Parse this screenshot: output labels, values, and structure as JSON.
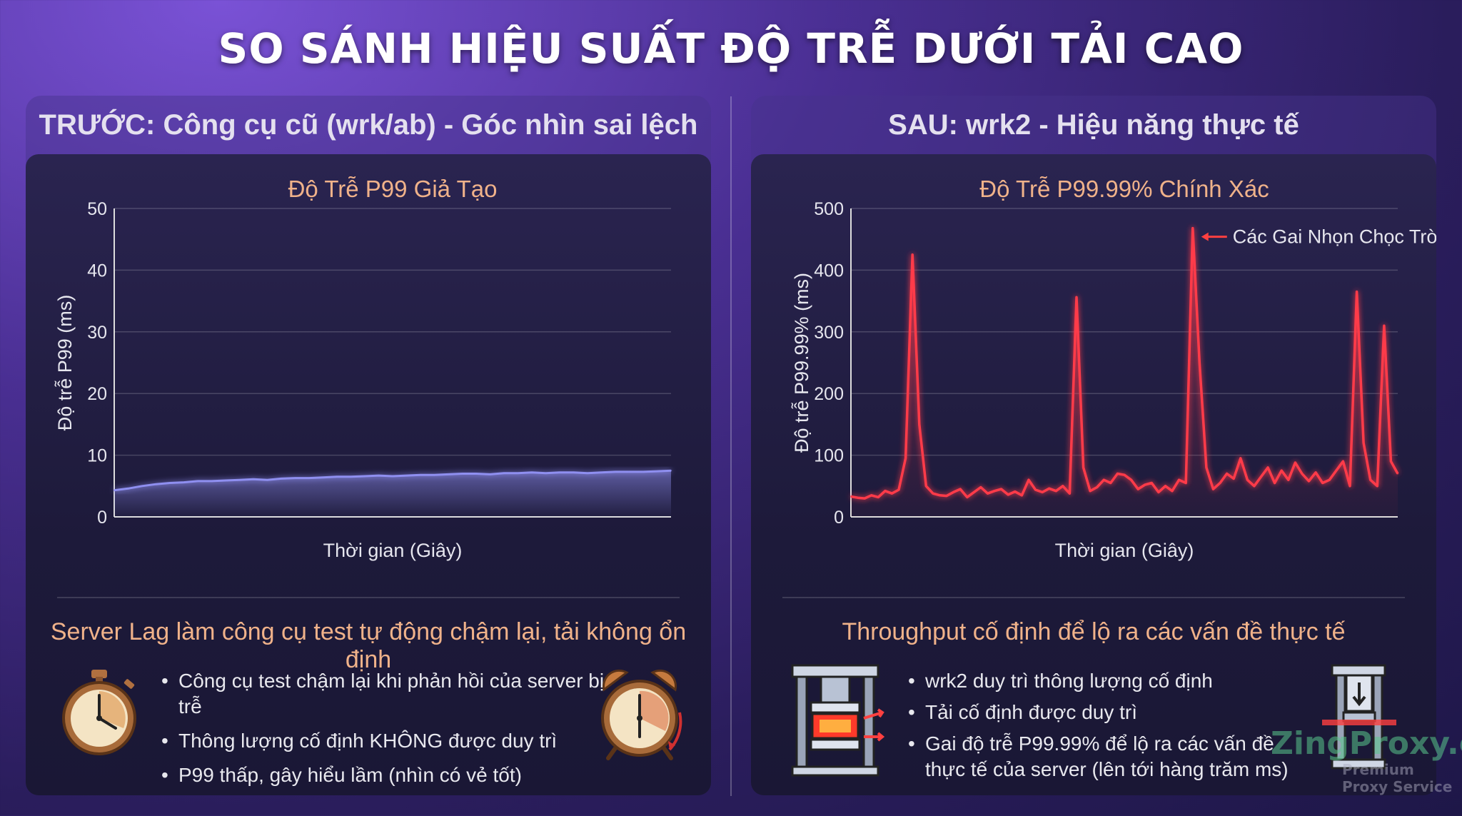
{
  "page": {
    "title": "SO SÁNH HIỆU SUẤT ĐỘ TRỄ DƯỚI TẢI CAO"
  },
  "left_panel": {
    "header": "TRƯỚC: Công cụ cũ (wrk/ab) - Góc nhìn sai lệch",
    "subhead": "Server Lag làm công cụ test tự động chậm lại, tải không ổn định",
    "bullets": [
      "Công cụ test chậm lại khi phản hồi của server bị trễ",
      "Thông lượng cố định KHÔNG được duy trì",
      "P99 thấp, gây hiểu lầm (nhìn có vẻ tốt)"
    ],
    "icons": [
      "stopwatch-icon",
      "alarm-clock-icon"
    ]
  },
  "right_panel": {
    "header": "SAU: wrk2 - Hiệu năng thực tế",
    "subhead": "Throughput cố định để lộ ra các vấn đề thực tế",
    "bullets": [
      "wrk2 duy trì thông lượng cố định",
      "Tải cố định được duy trì",
      "Gai độ trễ P99.99% để lộ ra các vấn đề thực tế của server (lên tới hàng trăm ms)"
    ],
    "icons": [
      "hydraulic-press-icon",
      "press-down-icon"
    ]
  },
  "watermark": {
    "brand": "ZingProxy.com",
    "tagline": "Premium Proxy Service"
  },
  "chart_data": [
    {
      "type": "area",
      "title": "Độ Trễ P99 Giả Tạo",
      "xlabel": "Thời gian (Giây)",
      "ylabel": "Độ trễ P99 (ms)",
      "ylim": [
        0,
        50
      ],
      "yticks": [
        0,
        10,
        20,
        30,
        40,
        50
      ],
      "grid": true,
      "color": "#8f8ff0",
      "x": [
        0,
        1,
        2,
        3,
        4,
        5,
        6,
        7,
        8,
        9,
        10,
        11,
        12,
        13,
        14,
        15,
        16,
        17,
        18,
        19,
        20,
        21,
        22,
        23,
        24,
        25,
        26,
        27,
        28,
        29,
        30,
        31,
        32,
        33,
        34,
        35,
        36,
        37,
        38,
        39,
        40
      ],
      "values": [
        4.3,
        4.6,
        5.0,
        5.3,
        5.5,
        5.6,
        5.8,
        5.8,
        5.9,
        6.0,
        6.1,
        6.0,
        6.2,
        6.3,
        6.3,
        6.4,
        6.5,
        6.5,
        6.6,
        6.7,
        6.6,
        6.7,
        6.8,
        6.8,
        6.9,
        7.0,
        7.0,
        6.9,
        7.1,
        7.1,
        7.2,
        7.1,
        7.2,
        7.2,
        7.1,
        7.2,
        7.3,
        7.3,
        7.3,
        7.4,
        7.5
      ]
    },
    {
      "type": "line",
      "title": "Độ Trễ P99.99% Chính Xác",
      "xlabel": "Thời gian (Giây)",
      "ylabel": "Độ trễ P99.99% (ms)",
      "ylim": [
        0,
        500
      ],
      "yticks": [
        0,
        100,
        200,
        300,
        400,
        500
      ],
      "grid": true,
      "color": "#ff3b4a",
      "annotation": "Các Gai Nhọn Chọc Trời",
      "x": [
        0,
        1,
        2,
        3,
        4,
        5,
        6,
        7,
        8,
        9,
        10,
        11,
        12,
        13,
        14,
        15,
        16,
        17,
        18,
        19,
        20,
        21,
        22,
        23,
        24,
        25,
        26,
        27,
        28,
        29,
        30,
        31,
        32,
        33,
        34,
        35,
        36,
        37,
        38,
        39,
        40,
        41,
        42,
        43,
        44,
        45,
        46,
        47,
        48,
        49,
        50,
        51,
        52,
        53,
        54,
        55,
        56,
        57,
        58,
        59,
        60,
        61,
        62,
        63,
        64,
        65,
        66,
        67,
        68,
        69,
        70,
        71,
        72,
        73,
        74,
        75,
        76,
        77,
        78,
        79,
        80
      ],
      "values": [
        33,
        31,
        30,
        35,
        32,
        42,
        38,
        44,
        95,
        425,
        150,
        50,
        38,
        35,
        34,
        40,
        45,
        32,
        40,
        48,
        38,
        42,
        45,
        36,
        41,
        35,
        60,
        44,
        40,
        46,
        42,
        50,
        38,
        356,
        80,
        42,
        48,
        60,
        55,
        70,
        68,
        60,
        45,
        52,
        55,
        40,
        50,
        42,
        60,
        55,
        468,
        250,
        80,
        45,
        55,
        70,
        62,
        95,
        60,
        50,
        65,
        80,
        55,
        75,
        60,
        88,
        70,
        58,
        72,
        55,
        60,
        75,
        90,
        50,
        365,
        120,
        60,
        50,
        310,
        90,
        70
      ]
    }
  ]
}
